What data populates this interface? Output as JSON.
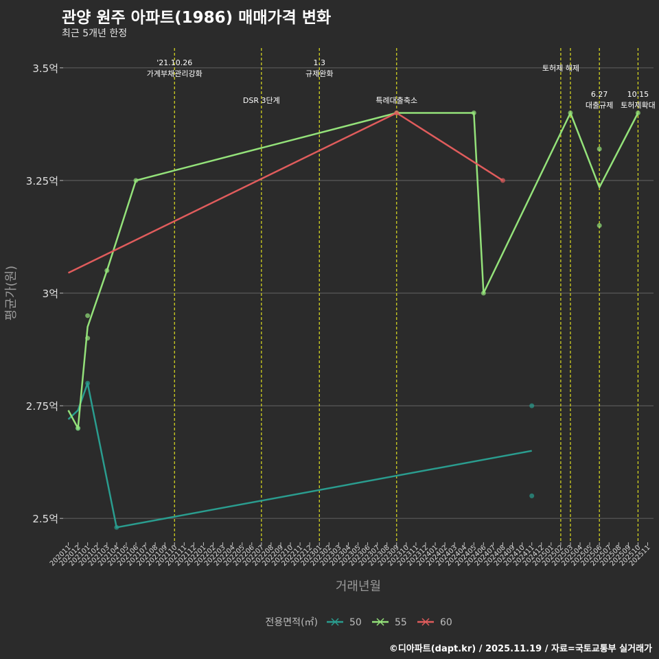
{
  "chart_data": {
    "type": "line",
    "title": "관양 원주 아파트(1986) 매매가격 변화",
    "subtitle": "최근 5개년 한정",
    "xlabel": "거래년월",
    "ylabel": "평균가(원)",
    "caption": "©디아파트(dapt.kr) / 2025.11.19 / 자료=국토교통부 실거래가",
    "legend_title": "전용면적(㎡)",
    "legend_position": "bottom",
    "grid": true,
    "ylim": [
      2.45,
      3.55
    ],
    "yticks": [
      {
        "value": 2.5,
        "label": "2.5억"
      },
      {
        "value": 2.75,
        "label": "2.75억"
      },
      {
        "value": 3.0,
        "label": "3억"
      },
      {
        "value": 3.25,
        "label": "3.25억"
      },
      {
        "value": 3.5,
        "label": "3.5억"
      }
    ],
    "categories": [
      "202011",
      "202012",
      "202101",
      "202102",
      "202103",
      "202104",
      "202105",
      "202106",
      "202107",
      "202108",
      "202109",
      "202110",
      "202111",
      "202112",
      "202201",
      "202202",
      "202203",
      "202204",
      "202205",
      "202206",
      "202207",
      "202208",
      "202209",
      "202210",
      "202211",
      "202212",
      "202301",
      "202302",
      "202303",
      "202304",
      "202305",
      "202306",
      "202307",
      "202308",
      "202309",
      "202310",
      "202311",
      "202312",
      "202401",
      "202402",
      "202403",
      "202404",
      "202405",
      "202406",
      "202407",
      "202408",
      "202409",
      "202410",
      "202411",
      "202412",
      "202501",
      "202502",
      "202503",
      "202504",
      "202505",
      "202506",
      "202507",
      "202508",
      "202509",
      "202510",
      "202511"
    ],
    "series": [
      {
        "name": "50",
        "color": "#2a9d8f",
        "line": [
          {
            "x": "202011",
            "y": 2.72
          },
          {
            "x": "202012",
            "y": 2.74
          },
          {
            "x": "202101",
            "y": 2.8
          },
          {
            "x": "202104",
            "y": 2.48
          },
          {
            "x": "202411",
            "y": 2.65
          }
        ],
        "points": [
          {
            "x": "202012",
            "y": 2.7
          },
          {
            "x": "202101",
            "y": 2.8
          },
          {
            "x": "202104",
            "y": 2.48
          },
          {
            "x": "202411",
            "y": 2.75
          },
          {
            "x": "202411",
            "y": 2.55
          }
        ]
      },
      {
        "name": "55",
        "color": "#94e27a",
        "line": [
          {
            "x": "202011",
            "y": 2.74
          },
          {
            "x": "202012",
            "y": 2.7
          },
          {
            "x": "202101",
            "y": 2.925
          },
          {
            "x": "202103",
            "y": 3.05
          },
          {
            "x": "202106",
            "y": 3.25
          },
          {
            "x": "202309",
            "y": 3.4
          },
          {
            "x": "202405",
            "y": 3.4
          },
          {
            "x": "202406",
            "y": 3.0
          },
          {
            "x": "202503",
            "y": 3.4
          },
          {
            "x": "202506",
            "y": 3.235
          },
          {
            "x": "202510",
            "y": 3.4
          }
        ],
        "points": [
          {
            "x": "202012",
            "y": 2.7
          },
          {
            "x": "202101",
            "y": 2.95
          },
          {
            "x": "202101",
            "y": 2.9
          },
          {
            "x": "202103",
            "y": 3.05
          },
          {
            "x": "202106",
            "y": 3.25
          },
          {
            "x": "202309",
            "y": 3.4
          },
          {
            "x": "202405",
            "y": 3.4
          },
          {
            "x": "202406",
            "y": 3.0
          },
          {
            "x": "202503",
            "y": 3.4
          },
          {
            "x": "202506",
            "y": 3.32
          },
          {
            "x": "202506",
            "y": 3.15
          },
          {
            "x": "202510",
            "y": 3.4
          }
        ]
      },
      {
        "name": "60",
        "color": "#e05c5c",
        "line": [
          {
            "x": "202011",
            "y": 3.045
          },
          {
            "x": "202309",
            "y": 3.4
          },
          {
            "x": "202408",
            "y": 3.25
          }
        ],
        "points": [
          {
            "x": "202309",
            "y": 3.4
          },
          {
            "x": "202408",
            "y": 3.25
          }
        ]
      }
    ],
    "events": [
      {
        "x": "202110",
        "lines": [
          "'21.10.26",
          "가계부채관리강화"
        ],
        "row": "upper"
      },
      {
        "x": "202207",
        "lines": [
          "DSR 3단계"
        ],
        "row": "lower"
      },
      {
        "x": "202301",
        "lines": [
          "1.3",
          "규제완화"
        ],
        "row": "upper"
      },
      {
        "x": "202309",
        "lines": [
          "특례대출축소"
        ],
        "row": "lower"
      },
      {
        "x": "202502",
        "lines": [
          "토허제 해제"
        ],
        "row": "middle"
      },
      {
        "x": "202503",
        "lines": [],
        "row": "none"
      },
      {
        "x": "202506",
        "lines": [
          "6.27",
          "대출규제"
        ],
        "row": "lower2"
      },
      {
        "x": "202510",
        "lines": [
          "10.15",
          "토허제확대"
        ],
        "row": "lower2"
      }
    ]
  }
}
